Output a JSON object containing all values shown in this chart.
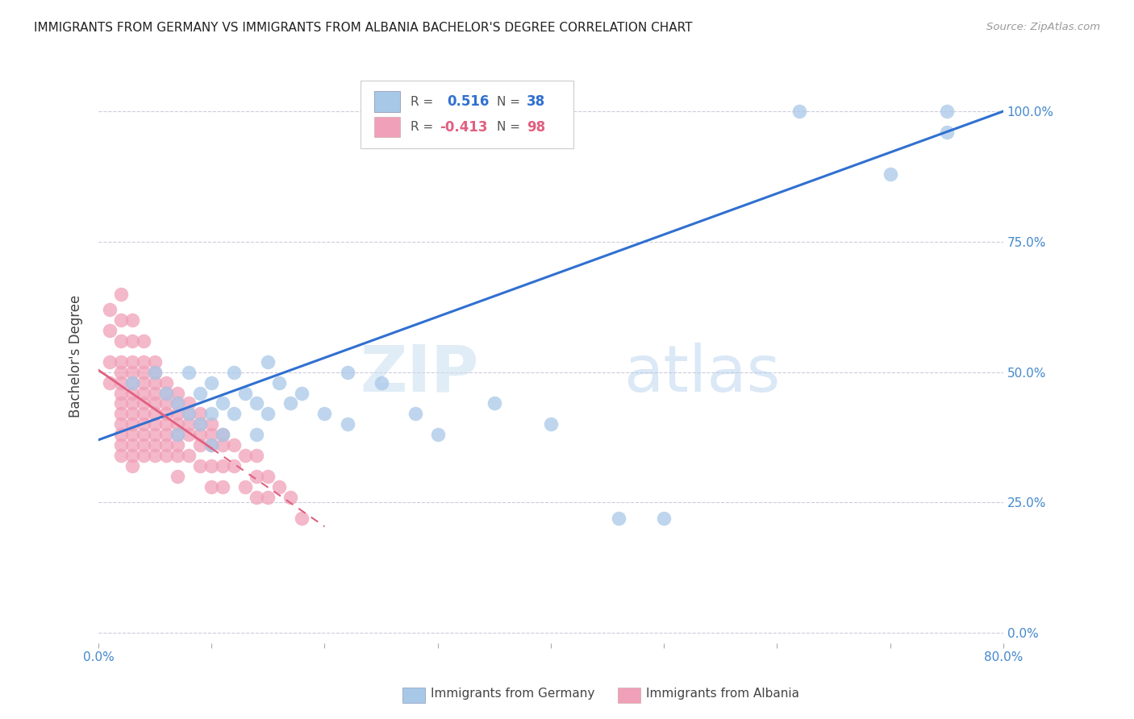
{
  "title": "IMMIGRANTS FROM GERMANY VS IMMIGRANTS FROM ALBANIA BACHELOR'S DEGREE CORRELATION CHART",
  "source": "Source: ZipAtlas.com",
  "ylabel": "Bachelor's Degree",
  "yticks": [
    "0.0%",
    "25.0%",
    "50.0%",
    "75.0%",
    "100.0%"
  ],
  "ytick_vals": [
    0.0,
    0.25,
    0.5,
    0.75,
    1.0
  ],
  "xlim": [
    0.0,
    0.8
  ],
  "ylim": [
    -0.02,
    1.08
  ],
  "germany_color": "#a8c8e8",
  "albania_color": "#f0a0b8",
  "germany_line_color": "#3070d0",
  "albania_line_color": "#e06080",
  "R_germany": 0.516,
  "N_germany": 38,
  "R_albania": -0.413,
  "N_albania": 98,
  "watermark_zip": "ZIP",
  "watermark_atlas": "atlas",
  "germany_x": [
    0.03,
    0.05,
    0.06,
    0.07,
    0.07,
    0.08,
    0.08,
    0.09,
    0.09,
    0.1,
    0.1,
    0.1,
    0.11,
    0.11,
    0.12,
    0.12,
    0.13,
    0.14,
    0.14,
    0.15,
    0.15,
    0.16,
    0.17,
    0.18,
    0.2,
    0.22,
    0.22,
    0.25,
    0.28,
    0.3,
    0.35,
    0.4,
    0.46,
    0.5,
    0.62,
    0.7,
    0.75,
    0.75
  ],
  "germany_y": [
    0.48,
    0.5,
    0.46,
    0.44,
    0.38,
    0.5,
    0.42,
    0.46,
    0.4,
    0.48,
    0.42,
    0.36,
    0.44,
    0.38,
    0.5,
    0.42,
    0.46,
    0.44,
    0.38,
    0.52,
    0.42,
    0.48,
    0.44,
    0.46,
    0.42,
    0.5,
    0.4,
    0.48,
    0.42,
    0.38,
    0.44,
    0.4,
    0.22,
    0.22,
    1.0,
    0.88,
    0.96,
    1.0
  ],
  "albania_x": [
    0.01,
    0.01,
    0.01,
    0.01,
    0.02,
    0.02,
    0.02,
    0.02,
    0.02,
    0.02,
    0.02,
    0.02,
    0.02,
    0.02,
    0.02,
    0.02,
    0.02,
    0.03,
    0.03,
    0.03,
    0.03,
    0.03,
    0.03,
    0.03,
    0.03,
    0.03,
    0.03,
    0.03,
    0.03,
    0.03,
    0.04,
    0.04,
    0.04,
    0.04,
    0.04,
    0.04,
    0.04,
    0.04,
    0.04,
    0.04,
    0.04,
    0.05,
    0.05,
    0.05,
    0.05,
    0.05,
    0.05,
    0.05,
    0.05,
    0.05,
    0.05,
    0.06,
    0.06,
    0.06,
    0.06,
    0.06,
    0.06,
    0.06,
    0.06,
    0.07,
    0.07,
    0.07,
    0.07,
    0.07,
    0.07,
    0.07,
    0.07,
    0.08,
    0.08,
    0.08,
    0.08,
    0.08,
    0.09,
    0.09,
    0.09,
    0.09,
    0.09,
    0.1,
    0.1,
    0.1,
    0.1,
    0.1,
    0.11,
    0.11,
    0.11,
    0.11,
    0.12,
    0.12,
    0.13,
    0.13,
    0.14,
    0.14,
    0.14,
    0.15,
    0.15,
    0.16,
    0.17,
    0.18
  ],
  "albania_y": [
    0.62,
    0.58,
    0.52,
    0.48,
    0.65,
    0.6,
    0.56,
    0.52,
    0.5,
    0.48,
    0.46,
    0.44,
    0.42,
    0.4,
    0.38,
    0.36,
    0.34,
    0.6,
    0.56,
    0.52,
    0.5,
    0.48,
    0.46,
    0.44,
    0.42,
    0.4,
    0.38,
    0.36,
    0.34,
    0.32,
    0.56,
    0.52,
    0.5,
    0.48,
    0.46,
    0.44,
    0.42,
    0.4,
    0.38,
    0.36,
    0.34,
    0.52,
    0.5,
    0.48,
    0.46,
    0.44,
    0.42,
    0.4,
    0.38,
    0.36,
    0.34,
    0.48,
    0.46,
    0.44,
    0.42,
    0.4,
    0.38,
    0.36,
    0.34,
    0.46,
    0.44,
    0.42,
    0.4,
    0.38,
    0.36,
    0.34,
    0.3,
    0.44,
    0.42,
    0.4,
    0.38,
    0.34,
    0.42,
    0.4,
    0.38,
    0.36,
    0.32,
    0.4,
    0.38,
    0.36,
    0.32,
    0.28,
    0.38,
    0.36,
    0.32,
    0.28,
    0.36,
    0.32,
    0.34,
    0.28,
    0.34,
    0.3,
    0.26,
    0.3,
    0.26,
    0.28,
    0.26,
    0.22
  ]
}
